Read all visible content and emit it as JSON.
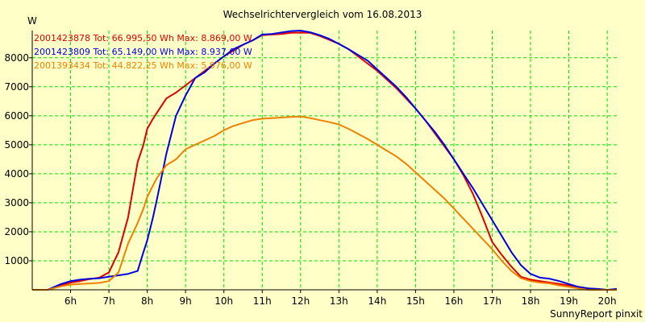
{
  "chart_data": {
    "type": "line",
    "title": "Wechselrichtervergleich vom 16.08.2013",
    "ylabel": "W",
    "footer": "SunnyReport pinxit",
    "grid": true,
    "legend_placement": "top-left",
    "xlim": [
      5.0,
      20.25
    ],
    "ylim": [
      0,
      8937
    ],
    "x_ticks": [
      6,
      7,
      8,
      9,
      10,
      11,
      12,
      13,
      14,
      15,
      16,
      17,
      18,
      19,
      20
    ],
    "x_tick_labels": [
      "6h",
      "7h",
      "8h",
      "9h",
      "10h",
      "11h",
      "12h",
      "13h",
      "14h",
      "15h",
      "16h",
      "17h",
      "18h",
      "19h",
      "20h"
    ],
    "y_ticks": [
      1000,
      2000,
      3000,
      4000,
      5000,
      6000,
      7000,
      8000
    ],
    "y_tick_labels": [
      "1000",
      "2000",
      "3000",
      "4000",
      "5000",
      "6000",
      "7000",
      "8000"
    ],
    "colors": {
      "background": "#ffffc8",
      "grid": "#00e000",
      "axis": "#000000"
    },
    "series": [
      {
        "name": "2001423878 Tot: 66.995,50 Wh Max: 8.869,00 W",
        "color": "#e00000",
        "x": [
          5.0,
          5.4,
          5.75,
          6.0,
          6.25,
          6.5,
          6.75,
          7.0,
          7.25,
          7.5,
          7.75,
          7.9,
          8.0,
          8.15,
          8.25,
          8.5,
          8.75,
          9.0,
          9.25,
          9.5,
          9.75,
          10.0,
          10.25,
          10.5,
          10.75,
          11.0,
          11.25,
          11.5,
          11.75,
          12.0,
          12.25,
          12.5,
          12.75,
          13.0,
          13.25,
          13.5,
          13.75,
          14.0,
          14.25,
          14.5,
          14.75,
          15.0,
          15.25,
          15.5,
          15.75,
          16.0,
          16.25,
          16.5,
          16.75,
          17.0,
          17.25,
          17.5,
          17.75,
          18.0,
          18.25,
          18.5,
          18.75,
          19.0,
          19.25,
          19.5,
          19.75,
          20.0,
          20.25
        ],
        "y": [
          0,
          0,
          150,
          250,
          300,
          370,
          420,
          600,
          1300,
          2500,
          4400,
          5000,
          5550,
          5900,
          6100,
          6600,
          6800,
          7050,
          7300,
          7550,
          7800,
          8050,
          8250,
          8450,
          8600,
          8780,
          8800,
          8820,
          8860,
          8869,
          8860,
          8750,
          8620,
          8480,
          8300,
          8050,
          7800,
          7550,
          7250,
          6950,
          6600,
          6250,
          5850,
          5400,
          4950,
          4500,
          3950,
          3300,
          2500,
          1650,
          1200,
          800,
          450,
          350,
          300,
          250,
          200,
          150,
          100,
          50,
          0,
          0,
          0
        ]
      },
      {
        "name": "2001423809 Tot: 65.149,00 Wh Max: 8.937,00 W",
        "color": "#0000e0",
        "x": [
          5.0,
          5.4,
          5.75,
          6.0,
          6.25,
          6.5,
          6.75,
          7.0,
          7.25,
          7.5,
          7.75,
          7.9,
          8.0,
          8.15,
          8.25,
          8.5,
          8.75,
          9.0,
          9.25,
          9.5,
          9.75,
          10.0,
          10.25,
          10.5,
          10.75,
          11.0,
          11.25,
          11.5,
          11.75,
          12.0,
          12.25,
          12.5,
          12.75,
          13.0,
          13.25,
          13.5,
          13.75,
          14.0,
          14.25,
          14.5,
          14.75,
          15.0,
          15.25,
          15.5,
          15.75,
          16.0,
          16.25,
          16.5,
          16.75,
          17.0,
          17.25,
          17.5,
          17.75,
          18.0,
          18.25,
          18.5,
          18.75,
          19.0,
          19.25,
          19.5,
          19.75,
          20.0,
          20.25
        ],
        "y": [
          0,
          0,
          200,
          300,
          350,
          380,
          400,
          450,
          500,
          550,
          650,
          1300,
          1700,
          2500,
          3100,
          4700,
          6000,
          6700,
          7300,
          7500,
          7800,
          8050,
          8300,
          8450,
          8600,
          8800,
          8820,
          8870,
          8920,
          8937,
          8880,
          8780,
          8650,
          8480,
          8300,
          8100,
          7900,
          7600,
          7300,
          7000,
          6650,
          6250,
          5850,
          5450,
          5000,
          4500,
          4000,
          3500,
          2950,
          2400,
          1850,
          1300,
          850,
          550,
          420,
          380,
          300,
          200,
          100,
          50,
          30,
          0,
          30
        ]
      },
      {
        "name": "2001393434 Tot: 44.822,25 Wh Max: 5.976,00 W",
        "color": "#f08000",
        "x": [
          5.0,
          5.4,
          5.75,
          6.0,
          6.25,
          6.5,
          6.75,
          7.0,
          7.25,
          7.5,
          7.75,
          7.9,
          8.0,
          8.15,
          8.25,
          8.5,
          8.75,
          9.0,
          9.25,
          9.5,
          9.75,
          10.0,
          10.25,
          10.5,
          10.75,
          11.0,
          11.25,
          11.5,
          11.75,
          12.0,
          12.25,
          12.5,
          12.75,
          13.0,
          13.25,
          13.5,
          13.75,
          14.0,
          14.25,
          14.5,
          14.75,
          15.0,
          15.25,
          15.5,
          15.75,
          16.0,
          16.25,
          16.5,
          16.75,
          17.0,
          17.25,
          17.5,
          17.75,
          18.0,
          18.25,
          18.5,
          18.75,
          19.0,
          19.25,
          19.5,
          19.75,
          20.0,
          20.25
        ],
        "y": [
          0,
          0,
          120,
          180,
          200,
          220,
          240,
          300,
          600,
          1600,
          2300,
          2800,
          3200,
          3600,
          3850,
          4300,
          4500,
          4850,
          5000,
          5150,
          5300,
          5500,
          5650,
          5750,
          5850,
          5900,
          5920,
          5940,
          5960,
          5976,
          5920,
          5850,
          5780,
          5700,
          5550,
          5380,
          5200,
          5000,
          4800,
          4600,
          4350,
          4050,
          3750,
          3450,
          3150,
          2800,
          2450,
          2100,
          1750,
          1400,
          1000,
          650,
          400,
          300,
          250,
          220,
          150,
          100,
          50,
          0,
          0,
          0,
          0
        ]
      }
    ]
  }
}
